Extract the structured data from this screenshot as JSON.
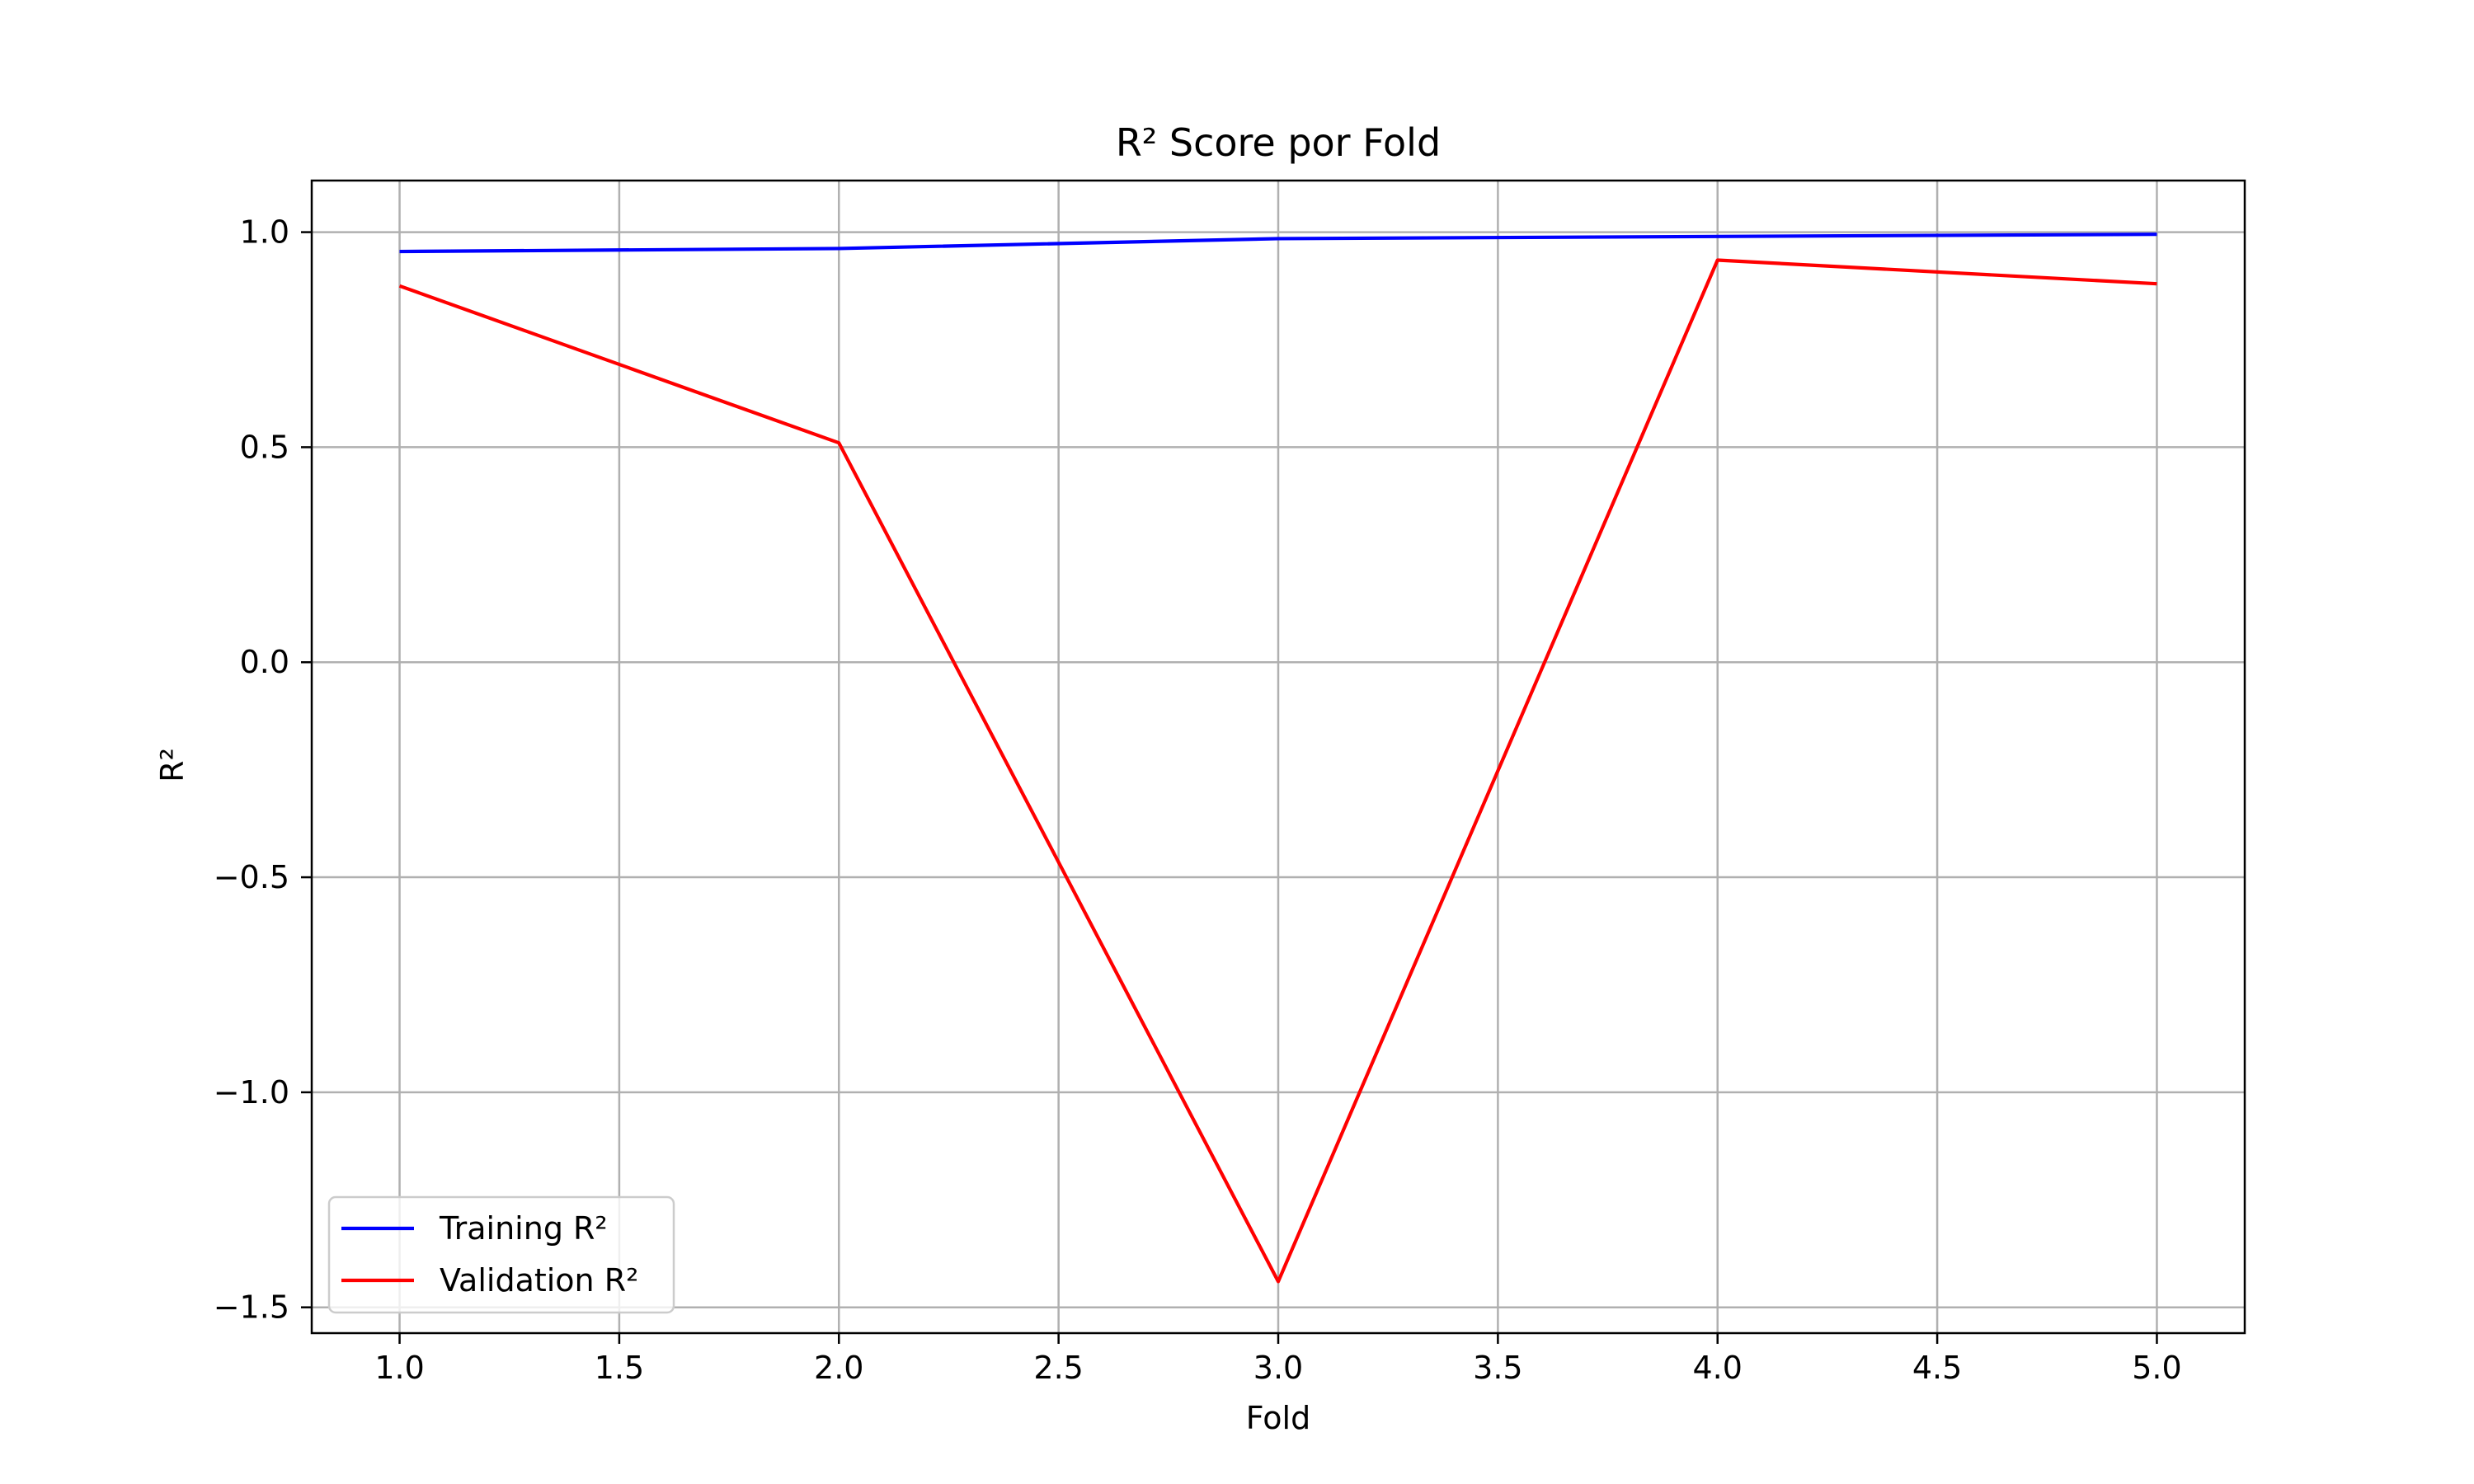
{
  "chart_data": {
    "type": "line",
    "title": "R² Score por Fold",
    "xlabel": "Fold",
    "ylabel": "R²",
    "xlim": [
      0.8,
      5.2
    ],
    "ylim": [
      -1.56,
      1.12
    ],
    "xticks": [
      1.0,
      1.5,
      2.0,
      2.5,
      3.0,
      3.5,
      4.0,
      4.5,
      5.0
    ],
    "xtick_labels": [
      "1.0",
      "1.5",
      "2.0",
      "2.5",
      "3.0",
      "3.5",
      "4.0",
      "4.5",
      "5.0"
    ],
    "yticks": [
      1.0,
      0.5,
      0.0,
      -0.5,
      -1.0,
      -1.5
    ],
    "ytick_labels": [
      "1.0",
      "0.5",
      "0.0",
      "−0.5",
      "−1.0",
      "−1.5"
    ],
    "grid": true,
    "legend_position": "lower-left",
    "x": [
      1,
      2,
      3,
      4,
      5
    ],
    "series": [
      {
        "name": "Training R²",
        "color": "#0000ff",
        "values": [
          0.955,
          0.962,
          0.985,
          0.99,
          0.995
        ]
      },
      {
        "name": "Validation R²",
        "color": "#ff0000",
        "values": [
          0.875,
          0.51,
          -1.44,
          0.935,
          0.88
        ]
      }
    ]
  }
}
